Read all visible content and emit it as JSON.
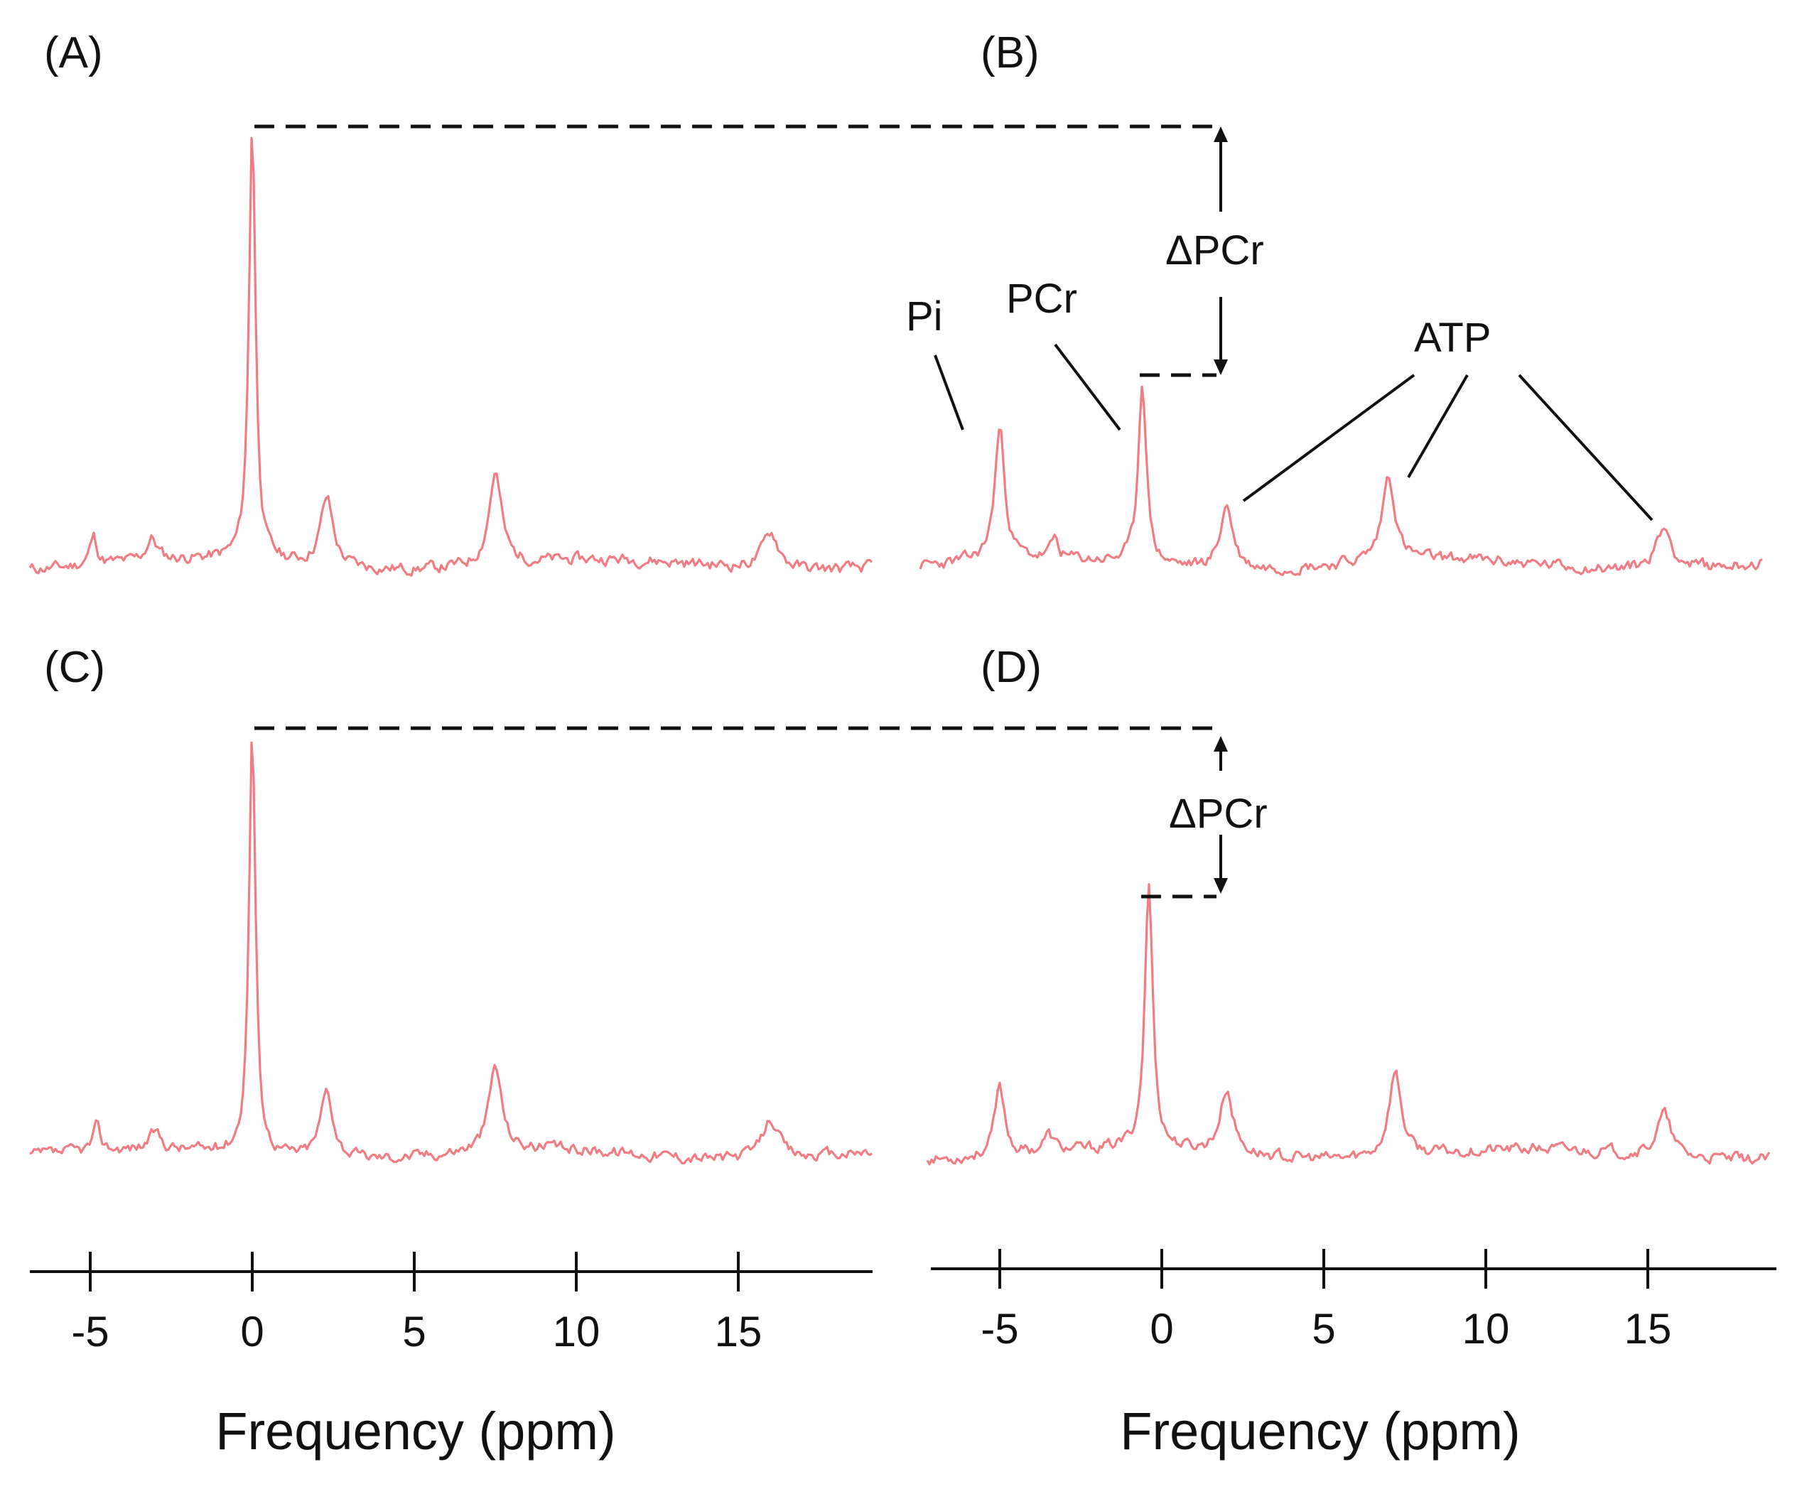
{
  "chart_data": [
    {
      "panel": "(A)",
      "type": "line",
      "x_range": [
        -6.8,
        19
      ],
      "peaks": [
        {
          "x": 0,
          "height": 1.0,
          "width": 0.18
        },
        {
          "x": 2.3,
          "height": 0.155,
          "width": 0.35
        },
        {
          "x": 7.5,
          "height": 0.21,
          "width": 0.35
        },
        {
          "x": 16.0,
          "height": 0.085,
          "width": 0.45
        },
        {
          "x": -4.9,
          "height": 0.065,
          "width": 0.2
        },
        {
          "x": -3.1,
          "height": 0.05,
          "width": 0.3
        }
      ]
    },
    {
      "panel": "(B)",
      "type": "line",
      "x_range": [
        -6.8,
        19
      ],
      "peaks": [
        {
          "x": -5.0,
          "height": 0.3,
          "width": 0.28
        },
        {
          "x": -0.6,
          "height": 0.42,
          "width": 0.22
        },
        {
          "x": 2.0,
          "height": 0.145,
          "width": 0.35
        },
        {
          "x": 7.0,
          "height": 0.195,
          "width": 0.35
        },
        {
          "x": 15.5,
          "height": 0.095,
          "width": 0.45
        },
        {
          "x": -3.3,
          "height": 0.045,
          "width": 0.2
        }
      ],
      "annotations": [
        "Pi",
        "PCr",
        "ATP",
        "ΔPCr"
      ]
    },
    {
      "panel": "(C)",
      "type": "line",
      "x_range": [
        -6.8,
        19
      ],
      "peaks": [
        {
          "x": 0,
          "height": 1.0,
          "width": 0.18
        },
        {
          "x": 2.3,
          "height": 0.16,
          "width": 0.35
        },
        {
          "x": 7.5,
          "height": 0.2,
          "width": 0.35
        },
        {
          "x": 16.0,
          "height": 0.095,
          "width": 0.45
        },
        {
          "x": -4.8,
          "height": 0.055,
          "width": 0.2
        },
        {
          "x": -3.0,
          "height": 0.04,
          "width": 0.3
        }
      ]
    },
    {
      "panel": "(D)",
      "type": "line",
      "x_range": [
        -6.8,
        19
      ],
      "peaks": [
        {
          "x": -5.0,
          "height": 0.16,
          "width": 0.28
        },
        {
          "x": -0.4,
          "height": 0.62,
          "width": 0.22
        },
        {
          "x": 2.0,
          "height": 0.15,
          "width": 0.35
        },
        {
          "x": 7.2,
          "height": 0.2,
          "width": 0.35
        },
        {
          "x": 15.5,
          "height": 0.1,
          "width": 0.4
        },
        {
          "x": -3.5,
          "height": 0.04,
          "width": 0.3
        }
      ],
      "annotations": [
        "ΔPCr"
      ]
    }
  ],
  "panels": {
    "a_label": "(A)",
    "b_label": "(B)",
    "c_label": "(C)",
    "d_label": "(D)"
  },
  "annotations": {
    "pi": "Pi",
    "pcr": "PCr",
    "atp": "ATP",
    "delta_pcr_top": "ΔPCr",
    "delta_pcr_bottom": "ΔPCr"
  },
  "x_axis": {
    "ticks": [
      -5,
      0,
      5,
      10,
      15
    ],
    "tick_labels": [
      "-5",
      "0",
      "5",
      "10",
      "15"
    ],
    "title_left": "Frequency (ppm)",
    "title_right": "Frequency (ppm)"
  },
  "colors": {
    "spectrum": "#f07c84",
    "annotation": "#111111"
  }
}
